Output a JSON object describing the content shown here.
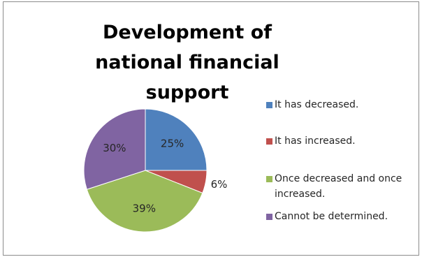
{
  "chart_data": {
    "type": "pie",
    "title": "Development of national financial support",
    "categories": [
      "It has decreased.",
      "It has increased.",
      "Once decreased and once increased.",
      "Cannot be determined."
    ],
    "values": [
      25,
      6,
      39,
      30
    ],
    "value_labels": [
      "25%",
      "6%",
      "39%",
      "30%"
    ],
    "colors": [
      "#4F81BD",
      "#C0504D",
      "#9BBB59",
      "#8064A2"
    ],
    "legend_position": "right",
    "start_angle": "12 o'clock",
    "direction": "clockwise"
  }
}
